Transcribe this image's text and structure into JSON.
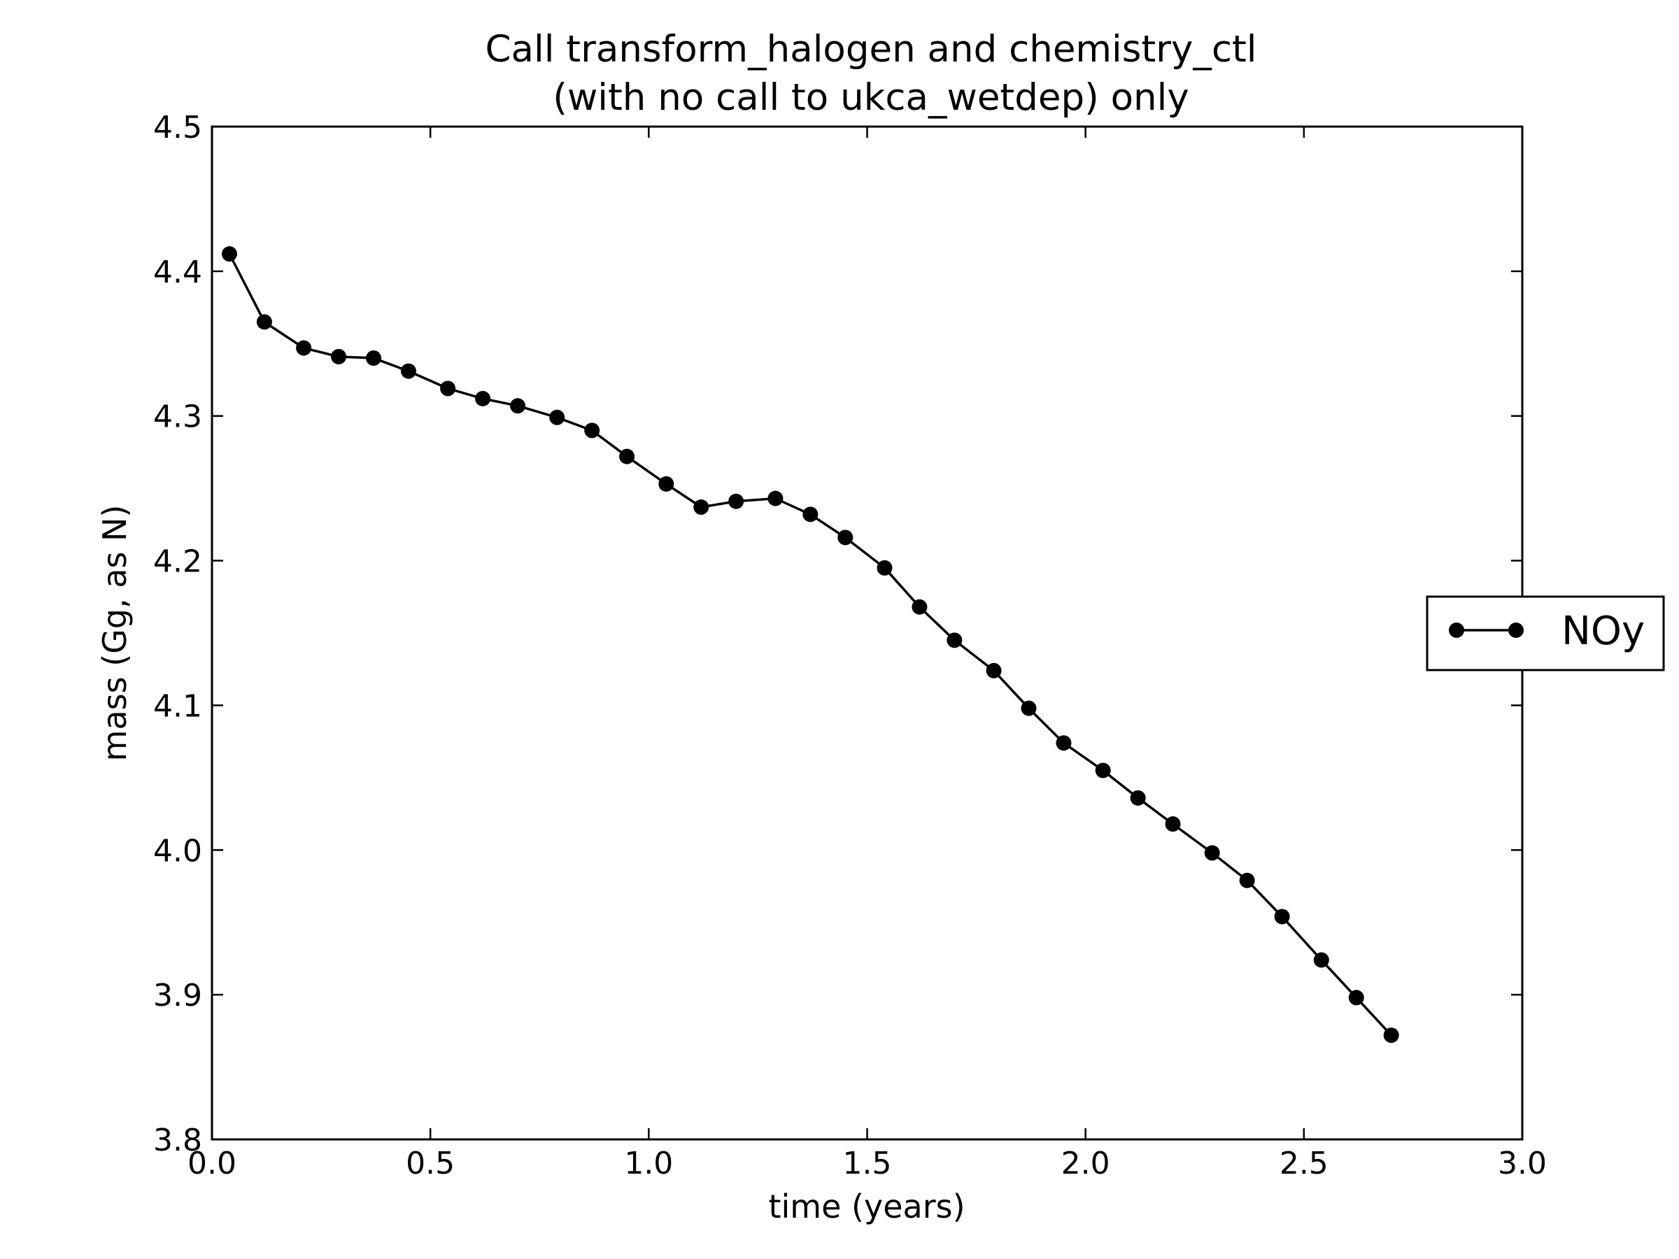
{
  "chart_data": {
    "type": "line",
    "title": "Call transform_halogen and chemistry_ctl",
    "subtitle": "(with no call to ukca_wetdep) only",
    "xlabel": "time (years)",
    "ylabel": "mass (Gg, as N)",
    "xlim": [
      0.0,
      3.0
    ],
    "ylim": [
      3.8,
      4.5
    ],
    "xticks": [
      "0.0",
      "0.5",
      "1.0",
      "1.5",
      "2.0",
      "2.5",
      "3.0"
    ],
    "yticks": [
      "3.8",
      "3.9",
      "4.0",
      "4.1",
      "4.2",
      "4.3",
      "4.4",
      "4.5"
    ],
    "grid": false,
    "legend_position": "center-right-outside",
    "series": [
      {
        "name": "NOy",
        "color": "#000000",
        "marker": "circle",
        "x": [
          0.04,
          0.12,
          0.21,
          0.29,
          0.37,
          0.45,
          0.54,
          0.62,
          0.7,
          0.79,
          0.87,
          0.95,
          1.04,
          1.12,
          1.2,
          1.29,
          1.37,
          1.45,
          1.54,
          1.62,
          1.7,
          1.79,
          1.87,
          1.95,
          2.04,
          2.12,
          2.2,
          2.29,
          2.37,
          2.45,
          2.54,
          2.62,
          2.7
        ],
        "y": [
          4.412,
          4.365,
          4.347,
          4.341,
          4.34,
          4.331,
          4.319,
          4.312,
          4.307,
          4.299,
          4.29,
          4.272,
          4.253,
          4.237,
          4.241,
          4.243,
          4.232,
          4.216,
          4.195,
          4.168,
          4.145,
          4.124,
          4.098,
          4.074,
          4.055,
          4.036,
          4.018,
          3.998,
          3.979,
          3.954,
          3.924,
          3.898,
          3.872
        ]
      }
    ]
  }
}
